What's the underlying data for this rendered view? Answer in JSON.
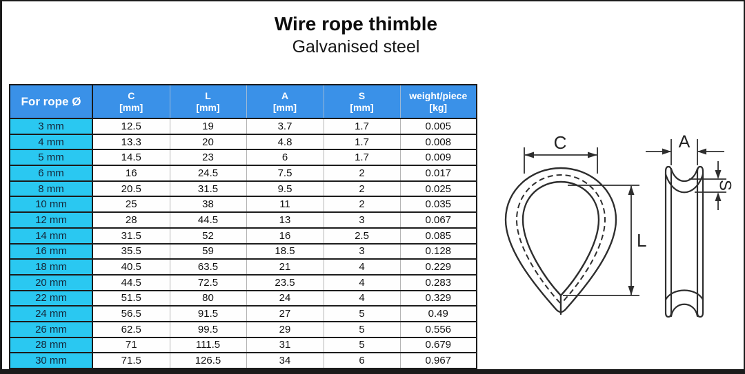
{
  "page": {
    "title": "Wire rope thimble",
    "subtitle": "Galvanised steel"
  },
  "table": {
    "rope_col_header": "For rope Ø",
    "columns": [
      {
        "name": "C",
        "unit": "[mm]"
      },
      {
        "name": "L",
        "unit": "[mm]"
      },
      {
        "name": "A",
        "unit": "[mm]"
      },
      {
        "name": "S",
        "unit": "[mm]"
      },
      {
        "name": "weight/piece",
        "unit": "[kg]"
      }
    ],
    "rows": [
      {
        "rope": "3 mm",
        "c": "12.5",
        "l": "19",
        "a": "3.7",
        "s": "1.7",
        "w": "0.005"
      },
      {
        "rope": "4 mm",
        "c": "13.3",
        "l": "20",
        "a": "4.8",
        "s": "1.7",
        "w": "0.008"
      },
      {
        "rope": "5 mm",
        "c": "14.5",
        "l": "23",
        "a": "6",
        "s": "1.7",
        "w": "0.009"
      },
      {
        "rope": "6 mm",
        "c": "16",
        "l": "24.5",
        "a": "7.5",
        "s": "2",
        "w": "0.017"
      },
      {
        "rope": "8 mm",
        "c": "20.5",
        "l": "31.5",
        "a": "9.5",
        "s": "2",
        "w": "0.025"
      },
      {
        "rope": "10 mm",
        "c": "25",
        "l": "38",
        "a": "11",
        "s": "2",
        "w": "0.035"
      },
      {
        "rope": "12 mm",
        "c": "28",
        "l": "44.5",
        "a": "13",
        "s": "3",
        "w": "0.067"
      },
      {
        "rope": "14 mm",
        "c": "31.5",
        "l": "52",
        "a": "16",
        "s": "2.5",
        "w": "0.085"
      },
      {
        "rope": "16 mm",
        "c": "35.5",
        "l": "59",
        "a": "18.5",
        "s": "3",
        "w": "0.128"
      },
      {
        "rope": "18 mm",
        "c": "40.5",
        "l": "63.5",
        "a": "21",
        "s": "4",
        "w": "0.229"
      },
      {
        "rope": "20 mm",
        "c": "44.5",
        "l": "72.5",
        "a": "23.5",
        "s": "4",
        "w": "0.283"
      },
      {
        "rope": "22 mm",
        "c": "51.5",
        "l": "80",
        "a": "24",
        "s": "4",
        "w": "0.329"
      },
      {
        "rope": "24 mm",
        "c": "56.5",
        "l": "91.5",
        "a": "27",
        "s": "5",
        "w": "0.49"
      },
      {
        "rope": "26 mm",
        "c": "62.5",
        "l": "99.5",
        "a": "29",
        "s": "5",
        "w": "0.556"
      },
      {
        "rope": "28 mm",
        "c": "71",
        "l": "111.5",
        "a": "31",
        "s": "5",
        "w": "0.679"
      },
      {
        "rope": "30 mm",
        "c": "71.5",
        "l": "126.5",
        "a": "34",
        "s": "6",
        "w": "0.967"
      }
    ]
  },
  "diagram": {
    "labels": {
      "c": "C",
      "l": "L",
      "a": "A",
      "s": "S"
    }
  },
  "colors": {
    "header-blue": "#3a91e8",
    "rope-cyan": "#2ac8f1",
    "row-label": "#14273a",
    "line-dark": "#1b1b1b",
    "grid-gray": "#b4b4b4",
    "diagram-line": "#2e2e2e"
  }
}
